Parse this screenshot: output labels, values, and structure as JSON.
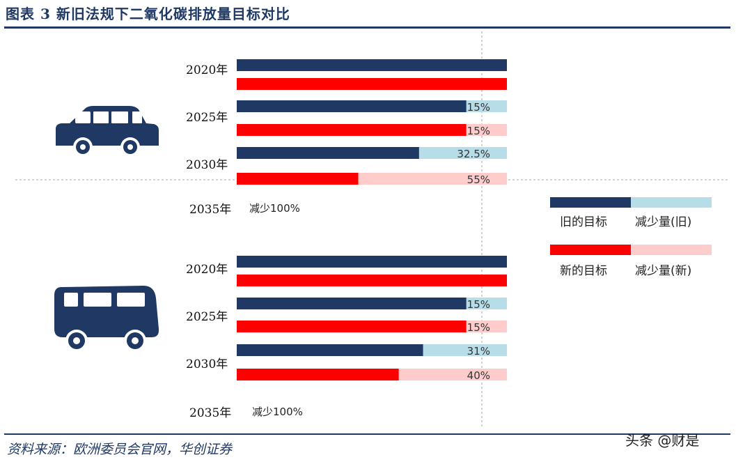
{
  "title": "图表 3 新旧法规下二氧化碳排放量目标对比",
  "source": "资料来源：欧洲委员会官网，华创证券",
  "watermark": "头条 @财是",
  "icons": [
    "car-icon",
    "van-icon"
  ],
  "colors": {
    "old_target": "#1f3864",
    "old_reduction": "#b7dde8",
    "new_target": "#ff0000",
    "new_reduction": "#ffcccc",
    "title": "#1f3864"
  },
  "legend": {
    "old_target": "旧的目标",
    "old_reduction": "减少量(旧)",
    "new_target": "新的目标",
    "new_reduction": "减少量(新)"
  },
  "chart_data": [
    {
      "type": "bar",
      "icon": "car-icon",
      "categories": [
        "2020年",
        "2025年",
        "2030年"
      ],
      "series": [
        {
          "name": "旧的目标",
          "values": [
            100,
            85,
            67.5
          ]
        },
        {
          "name": "减少量(旧)",
          "values": [
            0,
            15,
            32.5
          ]
        },
        {
          "name": "新的目标",
          "values": [
            100,
            85,
            45
          ]
        },
        {
          "name": "减少量(新)",
          "values": [
            0,
            15,
            55
          ]
        }
      ],
      "data_labels": {
        "old": [
          "",
          "15%",
          "32.5%"
        ],
        "new": [
          "",
          "15%",
          "55%"
        ]
      },
      "final_year": "2035年",
      "final_note": "减少100%"
    },
    {
      "type": "bar",
      "icon": "van-icon",
      "categories": [
        "2020年",
        "2025年",
        "2030年"
      ],
      "series": [
        {
          "name": "旧的目标",
          "values": [
            100,
            85,
            69
          ]
        },
        {
          "name": "减少量(旧)",
          "values": [
            0,
            15,
            31
          ]
        },
        {
          "name": "新的目标",
          "values": [
            100,
            85,
            60
          ]
        },
        {
          "name": "减少量(新)",
          "values": [
            0,
            15,
            40
          ]
        }
      ],
      "data_labels": {
        "old": [
          "",
          "15%",
          "31%"
        ],
        "new": [
          "",
          "15%",
          "40%"
        ]
      },
      "final_year": "2035年",
      "final_note": "减少100%"
    }
  ]
}
